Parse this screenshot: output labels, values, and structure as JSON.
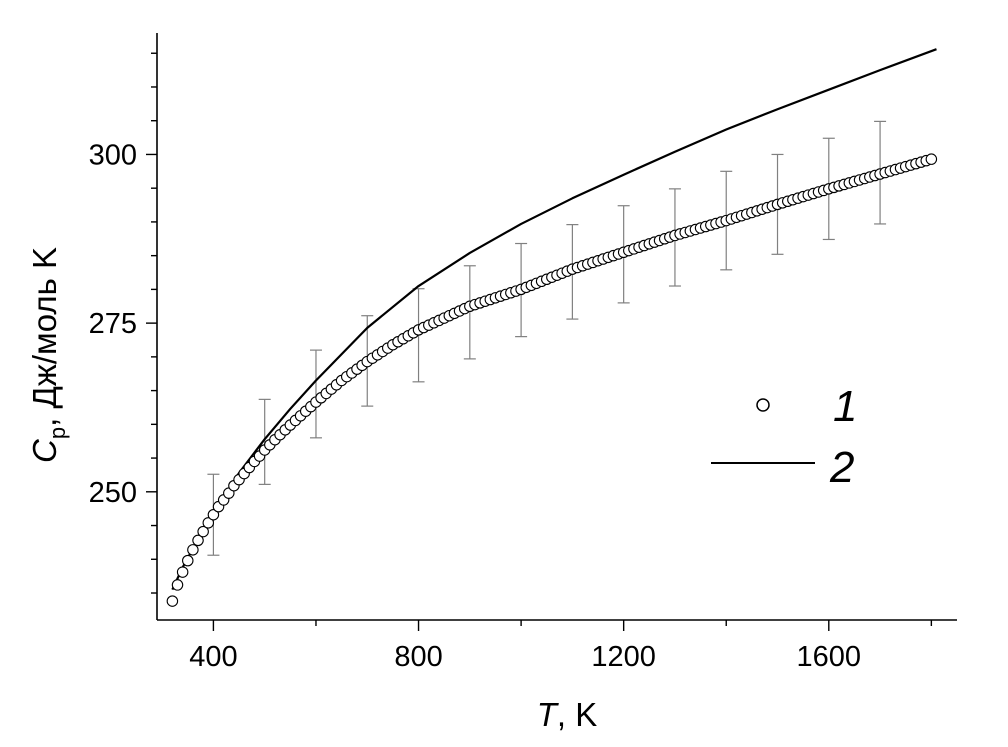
{
  "chart_data": {
    "type": "scatter",
    "title": "",
    "xlabel": {
      "italic": "T",
      "rest": ", K"
    },
    "ylabel": {
      "main": "C",
      "subscript": "p",
      "rest": ", Дж/моль K"
    },
    "xlim": [
      290,
      1850
    ],
    "ylim": [
      231,
      318
    ],
    "x_ticks": [
      400,
      800,
      1200,
      1600
    ],
    "y_ticks": [
      250,
      275,
      300
    ],
    "x_tick_labels": [
      "400",
      "800",
      "1200",
      "1600"
    ],
    "y_tick_labels": [
      "250",
      "275",
      "300"
    ],
    "grid": false,
    "legend_position": "right",
    "colors": {
      "series": "#000000",
      "error_bars": "#808080",
      "axis": "#000000"
    },
    "series": [
      {
        "name": "1",
        "kind": "markers",
        "marker": "open-circle",
        "x": [
          320,
          330,
          340,
          350,
          360,
          370,
          380,
          390,
          400,
          410,
          420,
          430,
          440,
          450,
          460,
          470,
          480,
          490,
          500,
          525,
          550,
          575,
          600,
          650,
          700,
          750,
          800,
          900,
          1000,
          1100,
          1200,
          1300,
          1400,
          1500,
          1600,
          1700,
          1800
        ],
        "y": [
          233.8,
          236.2,
          238.1,
          239.8,
          241.4,
          242.8,
          244.1,
          245.4,
          246.6,
          247.8,
          248.8,
          249.8,
          250.9,
          251.8,
          252.7,
          253.6,
          254.5,
          255.3,
          256.2,
          258.1,
          259.9,
          261.6,
          263.3,
          266.5,
          269.3,
          271.8,
          274.0,
          277.5,
          280.0,
          283.0,
          285.5,
          288.0,
          290.2,
          292.6,
          294.9,
          297.1,
          299.3
        ],
        "error_bars": {
          "x": [
            400,
            500,
            600,
            700,
            800,
            900,
            1000,
            1100,
            1200,
            1300,
            1400,
            1500,
            1600,
            1700
          ],
          "y": [
            246.6,
            257.4,
            264.5,
            269.4,
            273.2,
            276.6,
            279.9,
            282.6,
            285.2,
            287.7,
            290.2,
            292.6,
            294.9,
            297.3
          ],
          "err": [
            6.0,
            6.3,
            6.5,
            6.7,
            6.9,
            6.9,
            6.9,
            7.0,
            7.2,
            7.2,
            7.3,
            7.4,
            7.5,
            7.6
          ]
        }
      },
      {
        "name": "2",
        "kind": "line",
        "x": [
          320,
          340,
          360,
          380,
          400,
          450,
          500,
          550,
          600,
          700,
          800,
          900,
          1000,
          1100,
          1200,
          1300,
          1400,
          1500,
          1600,
          1700,
          1810
        ],
        "y": [
          235.5,
          238.8,
          241.6,
          244.2,
          246.8,
          252.8,
          257.8,
          262.3,
          266.5,
          274.3,
          280.5,
          285.4,
          289.7,
          293.5,
          297.0,
          300.4,
          303.7,
          306.7,
          309.6,
          312.5,
          315.6
        ]
      }
    ]
  }
}
